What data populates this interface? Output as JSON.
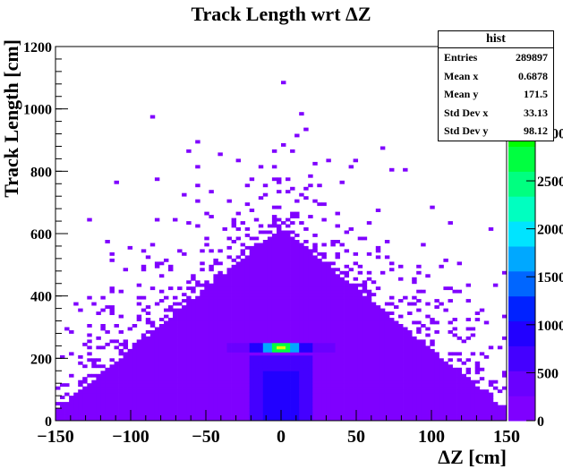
{
  "chart_data": {
    "type": "heatmap",
    "title": "Track Length wrt ΔZ",
    "xlabel": "ΔZ [cm]",
    "ylabel": "Track Length [cm]",
    "xlim": [
      -150,
      150
    ],
    "ylim": [
      0,
      1200
    ],
    "x_ticks": [
      "−150",
      "−100",
      "−50",
      "0",
      "50",
      "100",
      "150"
    ],
    "y_ticks": [
      "0",
      "200",
      "400",
      "600",
      "800",
      "1000",
      "1200"
    ],
    "x_tick_values": [
      -150,
      -100,
      -50,
      0,
      50,
      100,
      150
    ],
    "y_tick_values": [
      0,
      200,
      400,
      600,
      800,
      1000,
      1200
    ],
    "z_ticks": [
      "0",
      "500",
      "1000",
      "1500",
      "2000",
      "2500",
      "3000"
    ],
    "z_tick_values": [
      0,
      500,
      1000,
      1500,
      2000,
      2500,
      3000
    ],
    "z_max": 3900,
    "colors": [
      "#7f00ff",
      "#6a00ff",
      "#4400ff",
      "#2200ff",
      "#0022ff",
      "#0066ff",
      "#00a8ff",
      "#00e4ff",
      "#00ffc0",
      "#00ff80",
      "#00ff40",
      "#00ff00",
      "#44ff00",
      "#99ff00",
      "#d6ff00"
    ],
    "grid": false,
    "stats": {
      "title": "hist",
      "rows": [
        {
          "label": "Entries",
          "value": "289897"
        },
        {
          "label": "Mean x",
          "value": "0.6878"
        },
        {
          "label": "Mean y",
          "value": "171.5"
        },
        {
          "label": "Std Dev x",
          "value": "33.13"
        },
        {
          "label": "Std Dev y",
          "value": "98.12"
        }
      ]
    }
  }
}
